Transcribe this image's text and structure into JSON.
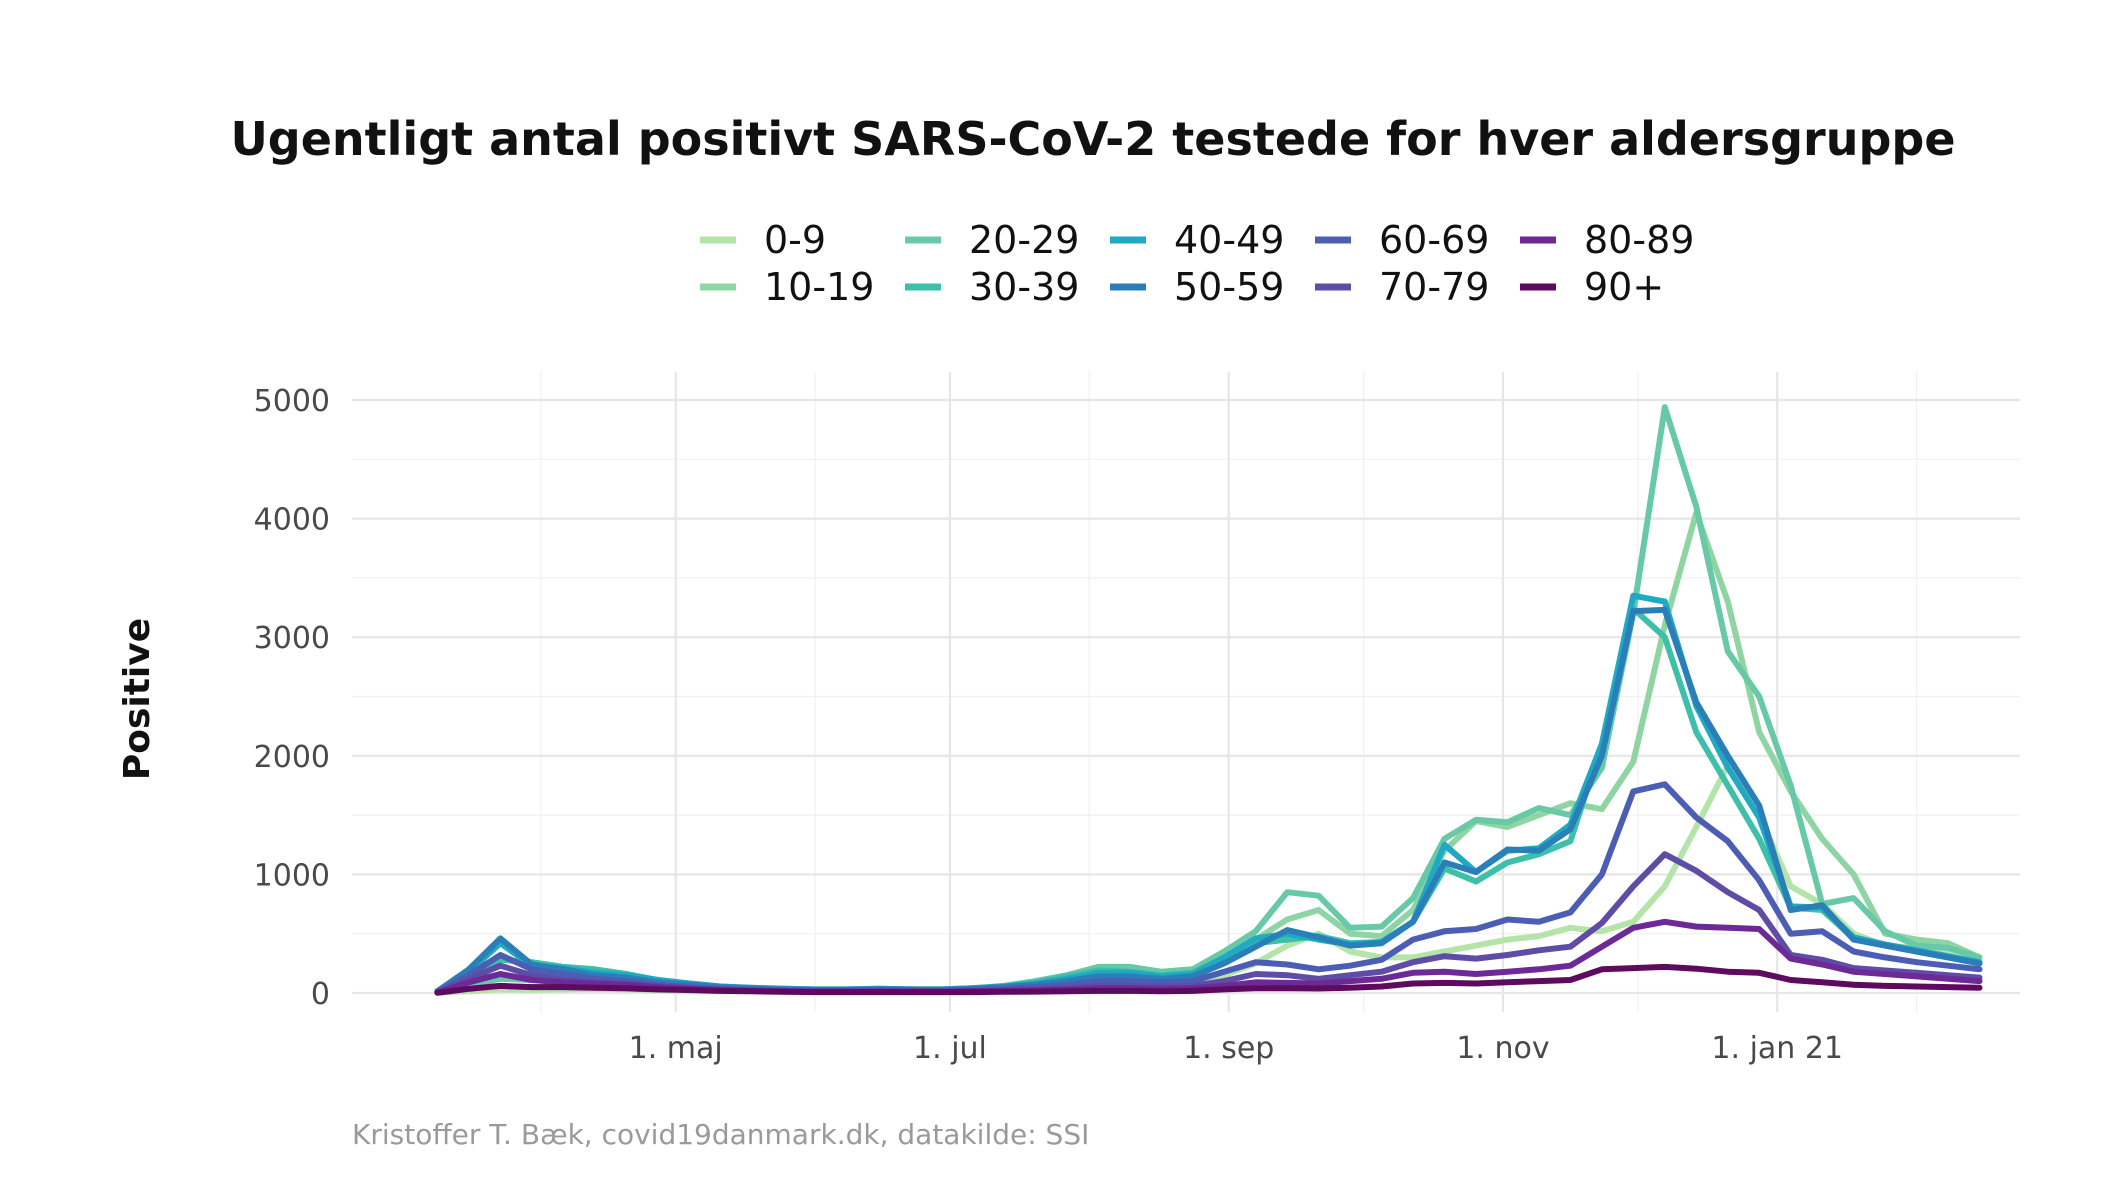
{
  "chart_data": {
    "type": "line",
    "title": "Ugentligt antal positivt SARS-CoV-2 testede for hver aldersgruppe",
    "ylabel": "Positive",
    "xlabel": "",
    "caption": "Kristoffer T. Bæk, covid19danmark.dk, datakilde: SSI",
    "ylim": [
      0,
      5000
    ],
    "xlim": [
      "2020-02-19",
      "2021-02-24"
    ],
    "yticks": [
      0,
      1000,
      2000,
      3000,
      4000,
      5000
    ],
    "ytick_labels": [
      "0",
      "1000",
      "2000",
      "3000",
      "4000",
      "5000"
    ],
    "xticks": [
      "2020-05-01",
      "2020-07-01",
      "2020-09-01",
      "2020-11-01",
      "2021-01-01"
    ],
    "xtick_labels": [
      "1. maj",
      "1. jul",
      "1. sep",
      "1. nov",
      "1. jan 21"
    ],
    "grid": true,
    "legend_position": "top",
    "x": [
      "2020-03-09",
      "2020-03-16",
      "2020-03-23",
      "2020-03-30",
      "2020-04-06",
      "2020-04-13",
      "2020-04-20",
      "2020-04-27",
      "2020-05-04",
      "2020-05-11",
      "2020-05-18",
      "2020-05-25",
      "2020-06-01",
      "2020-06-08",
      "2020-06-15",
      "2020-06-22",
      "2020-06-29",
      "2020-07-06",
      "2020-07-13",
      "2020-07-20",
      "2020-07-27",
      "2020-08-03",
      "2020-08-10",
      "2020-08-17",
      "2020-08-24",
      "2020-08-31",
      "2020-09-07",
      "2020-09-14",
      "2020-09-21",
      "2020-09-28",
      "2020-10-05",
      "2020-10-12",
      "2020-10-19",
      "2020-10-26",
      "2020-11-02",
      "2020-11-09",
      "2020-11-16",
      "2020-11-23",
      "2020-11-30",
      "2020-12-07",
      "2020-12-14",
      "2020-12-21",
      "2020-12-28",
      "2021-01-04",
      "2021-01-11",
      "2021-01-18",
      "2021-01-25",
      "2021-02-01",
      "2021-02-08",
      "2021-02-15"
    ],
    "series": [
      {
        "name": "0-9",
        "color": "#b5e4a9",
        "values": [
          5,
          15,
          30,
          25,
          30,
          35,
          30,
          25,
          20,
          15,
          15,
          10,
          10,
          10,
          10,
          8,
          8,
          10,
          20,
          25,
          30,
          60,
          70,
          60,
          80,
          150,
          250,
          400,
          500,
          350,
          300,
          300,
          350,
          400,
          450,
          480,
          550,
          520,
          600,
          900,
          1400,
          1920,
          1500,
          900,
          750,
          500,
          400,
          380,
          350,
          250
        ]
      },
      {
        "name": "10-19",
        "color": "#8fd4a3",
        "values": [
          10,
          40,
          60,
          50,
          60,
          70,
          60,
          40,
          30,
          25,
          20,
          15,
          15,
          15,
          20,
          15,
          15,
          20,
          30,
          50,
          80,
          150,
          180,
          130,
          150,
          300,
          450,
          620,
          700,
          500,
          480,
          700,
          1200,
          1450,
          1400,
          1500,
          1600,
          1550,
          1950,
          3100,
          4050,
          3300,
          2200,
          1700,
          1300,
          1000,
          500,
          450,
          420,
          300
        ]
      },
      {
        "name": "20-29",
        "color": "#68c9a6",
        "values": [
          10,
          70,
          120,
          110,
          130,
          150,
          130,
          80,
          60,
          40,
          30,
          25,
          25,
          25,
          30,
          25,
          25,
          40,
          60,
          100,
          150,
          220,
          220,
          180,
          200,
          350,
          520,
          850,
          820,
          550,
          560,
          800,
          1300,
          1460,
          1440,
          1560,
          1500,
          1900,
          3200,
          4940,
          4100,
          2880,
          2500,
          1750,
          750,
          800,
          520,
          400,
          380,
          300
        ]
      },
      {
        "name": "30-39",
        "color": "#3ebfa9",
        "values": [
          15,
          120,
          280,
          260,
          220,
          200,
          160,
          110,
          80,
          55,
          40,
          35,
          30,
          30,
          35,
          30,
          30,
          40,
          55,
          90,
          140,
          190,
          180,
          150,
          170,
          300,
          420,
          450,
          480,
          420,
          430,
          600,
          1050,
          940,
          1100,
          1170,
          1280,
          2100,
          3240,
          3000,
          2200,
          1750,
          1300,
          720,
          700,
          460,
          400,
          350,
          300,
          250
        ]
      },
      {
        "name": "40-49",
        "color": "#20a9c3",
        "values": [
          15,
          180,
          420,
          230,
          210,
          170,
          150,
          110,
          80,
          55,
          45,
          35,
          30,
          30,
          35,
          30,
          30,
          40,
          55,
          80,
          120,
          170,
          170,
          140,
          160,
          300,
          460,
          500,
          450,
          410,
          430,
          600,
          1250,
          1020,
          1200,
          1220,
          1420,
          2100,
          3350,
          3300,
          2420,
          1900,
          1480,
          730,
          720,
          470,
          410,
          360,
          310,
          260
        ]
      },
      {
        "name": "50-59",
        "color": "#2b7fb9",
        "values": [
          15,
          200,
          460,
          240,
          200,
          150,
          130,
          90,
          70,
          50,
          40,
          30,
          25,
          25,
          30,
          30,
          25,
          35,
          50,
          70,
          100,
          140,
          140,
          120,
          140,
          250,
          390,
          530,
          470,
          400,
          420,
          600,
          1100,
          1020,
          1210,
          1200,
          1380,
          2000,
          3220,
          3230,
          2450,
          2000,
          1580,
          700,
          740,
          450,
          400,
          350,
          300,
          250
        ]
      },
      {
        "name": "60-69",
        "color": "#4c5db4",
        "values": [
          10,
          150,
          320,
          200,
          160,
          120,
          100,
          70,
          50,
          35,
          25,
          20,
          20,
          20,
          25,
          20,
          20,
          25,
          35,
          50,
          70,
          100,
          100,
          90,
          100,
          180,
          260,
          240,
          200,
          230,
          280,
          450,
          520,
          540,
          620,
          600,
          680,
          1000,
          1700,
          1760,
          1480,
          1280,
          950,
          500,
          520,
          350,
          300,
          260,
          230,
          200
        ]
      },
      {
        "name": "70-79",
        "color": "#5f4ca6",
        "values": [
          5,
          120,
          230,
          150,
          110,
          90,
          80,
          60,
          40,
          30,
          20,
          15,
          15,
          15,
          15,
          15,
          15,
          18,
          25,
          35,
          45,
          60,
          60,
          55,
          60,
          100,
          160,
          150,
          120,
          150,
          180,
          260,
          310,
          290,
          320,
          360,
          390,
          590,
          900,
          1170,
          1030,
          850,
          700,
          320,
          280,
          210,
          190,
          170,
          150,
          130
        ]
      },
      {
        "name": "80-89",
        "color": "#6d2a96",
        "values": [
          5,
          90,
          160,
          110,
          90,
          80,
          70,
          50,
          35,
          25,
          20,
          15,
          12,
          12,
          12,
          12,
          12,
          14,
          18,
          22,
          30,
          40,
          40,
          35,
          40,
          60,
          90,
          85,
          80,
          100,
          120,
          170,
          180,
          160,
          180,
          200,
          230,
          390,
          550,
          600,
          560,
          550,
          540,
          290,
          240,
          180,
          160,
          140,
          120,
          100
        ]
      },
      {
        "name": "90+",
        "color": "#5e0a5e",
        "values": [
          2,
          35,
          60,
          50,
          50,
          45,
          40,
          30,
          25,
          18,
          14,
          10,
          8,
          8,
          8,
          8,
          8,
          8,
          10,
          12,
          15,
          18,
          18,
          15,
          18,
          30,
          40,
          40,
          38,
          45,
          55,
          80,
          85,
          80,
          90,
          100,
          110,
          200,
          210,
          220,
          205,
          180,
          170,
          110,
          90,
          70,
          60,
          55,
          50,
          45
        ]
      }
    ]
  }
}
